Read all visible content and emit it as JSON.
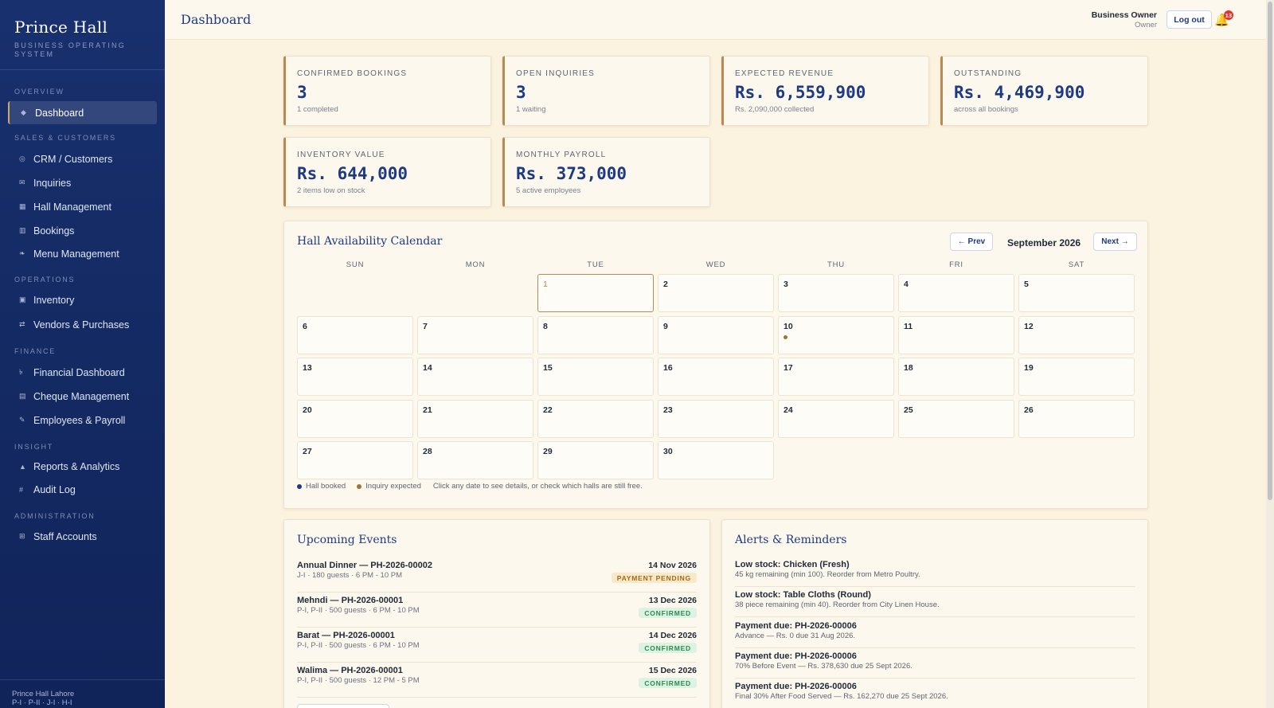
{
  "brand": {
    "title": "Prince Hall",
    "subtitle": "BUSINESS OPERATING SYSTEM"
  },
  "sidebar": {
    "sections": {
      "overview": "OVERVIEW",
      "sales": "SALES & CUSTOMERS",
      "operations": "OPERATIONS",
      "finance": "FINANCE",
      "insight": "INSIGHT",
      "administration": "ADMINISTRATION"
    },
    "items": {
      "dashboard": {
        "label": "Dashboard",
        "icon": "diamond-icon",
        "glyph": "◆"
      },
      "crm": {
        "label": "CRM / Customers",
        "icon": "circle-target-icon",
        "glyph": "◎"
      },
      "inquiries": {
        "label": "Inquiries",
        "icon": "mail-icon",
        "glyph": "✉"
      },
      "hall_management": {
        "label": "Hall Management",
        "icon": "square-icon",
        "glyph": "▦"
      },
      "bookings": {
        "label": "Bookings",
        "icon": "calendar-icon",
        "glyph": "▥"
      },
      "menu_management": {
        "label": "Menu Management",
        "icon": "utensils-icon",
        "glyph": "❧"
      },
      "inventory": {
        "label": "Inventory",
        "icon": "box-icon",
        "glyph": "▣"
      },
      "vendors": {
        "label": "Vendors & Purchases",
        "icon": "exchange-icon",
        "glyph": "⇄"
      },
      "financial_dashboard": {
        "label": "Financial Dashboard",
        "icon": "currency-icon",
        "glyph": "৳"
      },
      "cheque_management": {
        "label": "Cheque Management",
        "icon": "cheque-icon",
        "glyph": "▤"
      },
      "employees_payroll": {
        "label": "Employees & Payroll",
        "icon": "pen-icon",
        "glyph": "✎"
      },
      "reports_analytics": {
        "label": "Reports & Analytics",
        "icon": "chart-icon",
        "glyph": "▲"
      },
      "audit_log": {
        "label": "Audit Log",
        "icon": "hash-icon",
        "glyph": "#"
      },
      "staff_accounts": {
        "label": "Staff Accounts",
        "icon": "id-card-icon",
        "glyph": "⊞"
      }
    },
    "footer": {
      "line1": "Prince Hall Lahore",
      "line2": "P-I · P-II · J-I · H-I"
    }
  },
  "header": {
    "title": "Dashboard",
    "user_name": "Business Owner",
    "user_role": "Owner",
    "logout_label": "Log out",
    "notification_count": "13"
  },
  "stats": {
    "confirmed_bookings": {
      "label": "CONFIRMED BOOKINGS",
      "value": "3",
      "sub": "1 completed"
    },
    "open_inquiries": {
      "label": "OPEN INQUIRIES",
      "value": "3",
      "sub": "1 waiting"
    },
    "expected_revenue": {
      "label": "EXPECTED REVENUE",
      "value": "Rs. 6,559,900",
      "sub": "Rs. 2,090,000 collected"
    },
    "outstanding": {
      "label": "OUTSTANDING",
      "value": "Rs. 4,469,900",
      "sub": "across all bookings"
    },
    "inventory_value": {
      "label": "INVENTORY VALUE",
      "value": "Rs. 644,000",
      "sub": "2 items low on stock"
    },
    "monthly_payroll": {
      "label": "MONTHLY PAYROLL",
      "value": "Rs. 373,000",
      "sub": "5 active employees"
    }
  },
  "calendar": {
    "title": "Hall Availability Calendar",
    "prev_label": "← Prev",
    "next_label": "Next →",
    "month": "September 2026",
    "weekdays": [
      "SUN",
      "MON",
      "TUE",
      "WED",
      "THU",
      "FRI",
      "SAT"
    ],
    "first_weekday": 2,
    "days_in_month": 30,
    "today": 1,
    "inquiry_days": [
      10
    ],
    "legend": {
      "booked": "Hall booked",
      "inquiry": "Inquiry expected",
      "hint": "Click any date to see details, or check which halls are still free."
    },
    "colors": {
      "booked": "#1d3a83",
      "inquiry": "#9c7339"
    }
  },
  "upcoming_events": {
    "title": "Upcoming Events",
    "items": [
      {
        "title": "Annual Dinner — PH-2026-00002",
        "meta": "J-I · 180 guests · 6 PM - 10 PM",
        "date": "14 Nov 2026",
        "status": "PAYMENT PENDING"
      },
      {
        "title": "Mehndi — PH-2026-00001",
        "meta": "P-I, P-II · 500 guests · 6 PM - 10 PM",
        "date": "13 Dec 2026",
        "status": "CONFIRMED"
      },
      {
        "title": "Barat — PH-2026-00001",
        "meta": "P-I, P-II · 500 guests · 6 PM - 10 PM",
        "date": "14 Dec 2026",
        "status": "CONFIRMED"
      },
      {
        "title": "Walima — PH-2026-00001",
        "meta": "P-I, P-II · 500 guests · 12 PM - 5 PM",
        "date": "15 Dec 2026",
        "status": "CONFIRMED"
      }
    ]
  },
  "alerts": {
    "title": "Alerts & Reminders",
    "items": [
      {
        "title": "Low stock: Chicken (Fresh)",
        "text": "45 kg remaining (min 100). Reorder from Metro Poultry."
      },
      {
        "title": "Low stock: Table Cloths (Round)",
        "text": "38 piece remaining (min 40). Reorder from City Linen House."
      },
      {
        "title": "Payment due: PH-2026-00006",
        "text": "Advance — Rs. 0 due 31 Aug 2026."
      },
      {
        "title": "Payment due: PH-2026-00006",
        "text": "70% Before Event — Rs. 378,630 due 25 Sept 2026."
      },
      {
        "title": "Payment due: PH-2026-00006",
        "text": "Final 30% After Food Served — Rs. 162,270 due 25 Sept 2026."
      }
    ]
  }
}
